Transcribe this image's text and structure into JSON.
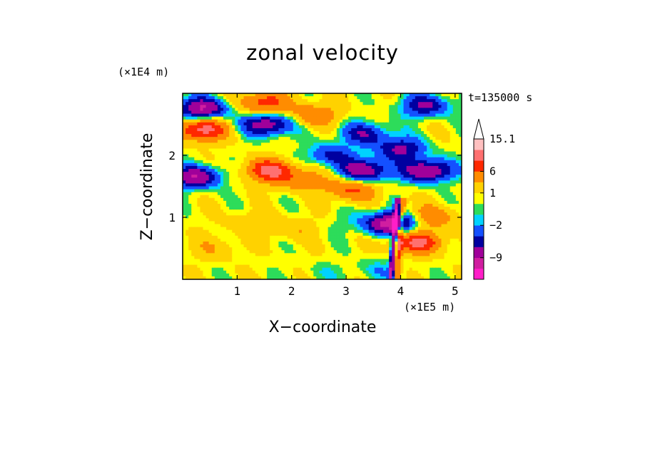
{
  "chart_data": {
    "type": "heatmap",
    "title": "zonal velocity",
    "xlabel": "X−coordinate",
    "ylabel": "Z−coordinate",
    "x_unit": "(×1E5 m)",
    "y_unit": "(×1E4 m)",
    "time_label": "t=135000 s",
    "xlim": [
      0,
      5.12
    ],
    "ylim": [
      0,
      3.0
    ],
    "x_ticks": [
      {
        "value": 1,
        "label": "1"
      },
      {
        "value": 2,
        "label": "2"
      },
      {
        "value": 3,
        "label": "3"
      },
      {
        "value": 4,
        "label": "4"
      },
      {
        "value": 5,
        "label": "5"
      }
    ],
    "y_ticks": [
      {
        "value": 1,
        "label": "1"
      },
      {
        "value": 2,
        "label": "2"
      }
    ],
    "colorbar": {
      "levels": [
        -15.1,
        -12,
        -9,
        -6,
        -4,
        -2,
        -1,
        0,
        1,
        3,
        6,
        9,
        12,
        15.1
      ],
      "colors": [
        "#ff1ec8",
        "#d01ea0",
        "#a0009a",
        "#0000a0",
        "#1450ff",
        "#00d2ff",
        "#2ddc5a",
        "#ffff00",
        "#ffd200",
        "#ff8c00",
        "#ff2800",
        "#ff7070",
        "#ffc0c0"
      ],
      "labels": [
        {
          "value": 15.1,
          "text": "15.1"
        },
        {
          "value": 6,
          "text": "6"
        },
        {
          "value": 1,
          "text": "1"
        },
        {
          "value": -2,
          "text": "−2"
        },
        {
          "value": -9,
          "text": "−9"
        }
      ]
    },
    "features": [
      {
        "x": 0.35,
        "z": 2.75,
        "u": -10
      },
      {
        "x": 1.55,
        "z": 2.5,
        "u": -9
      },
      {
        "x": 3.35,
        "z": 2.35,
        "u": -6
      },
      {
        "x": 4.45,
        "z": 2.8,
        "u": -7
      },
      {
        "x": 0.35,
        "z": 2.42,
        "u": 10
      },
      {
        "x": 1.5,
        "z": 2.85,
        "u": 7
      },
      {
        "x": 2.4,
        "z": 2.65,
        "u": 5
      },
      {
        "x": 1.6,
        "z": 1.75,
        "u": 9
      },
      {
        "x": 0.25,
        "z": 1.65,
        "u": -9
      },
      {
        "x": 2.7,
        "z": 2.0,
        "u": -5
      },
      {
        "x": 3.35,
        "z": 1.75,
        "u": -9
      },
      {
        "x": 4.5,
        "z": 1.75,
        "u": -10
      },
      {
        "x": 4.0,
        "z": 2.1,
        "u": -7
      },
      {
        "x": 3.1,
        "z": 1.45,
        "u": 6
      },
      {
        "x": 2.2,
        "z": 1.6,
        "u": 4
      },
      {
        "x": 3.85,
        "z": 0.9,
        "u": -12
      },
      {
        "x": 4.3,
        "z": 0.6,
        "u": 9
      },
      {
        "x": 4.55,
        "z": 1.0,
        "u": 5
      },
      {
        "x": 1.2,
        "z": 0.9,
        "u": 2
      },
      {
        "x": 2.0,
        "z": 0.8,
        "u": 2
      },
      {
        "x": 0.6,
        "z": 0.5,
        "u": 2
      },
      {
        "x": 3.1,
        "z": 0.9,
        "u": -1
      },
      {
        "x": 2.6,
        "z": 0.1,
        "u": -1
      },
      {
        "x": 3.6,
        "z": 0.15,
        "u": -2
      }
    ]
  }
}
